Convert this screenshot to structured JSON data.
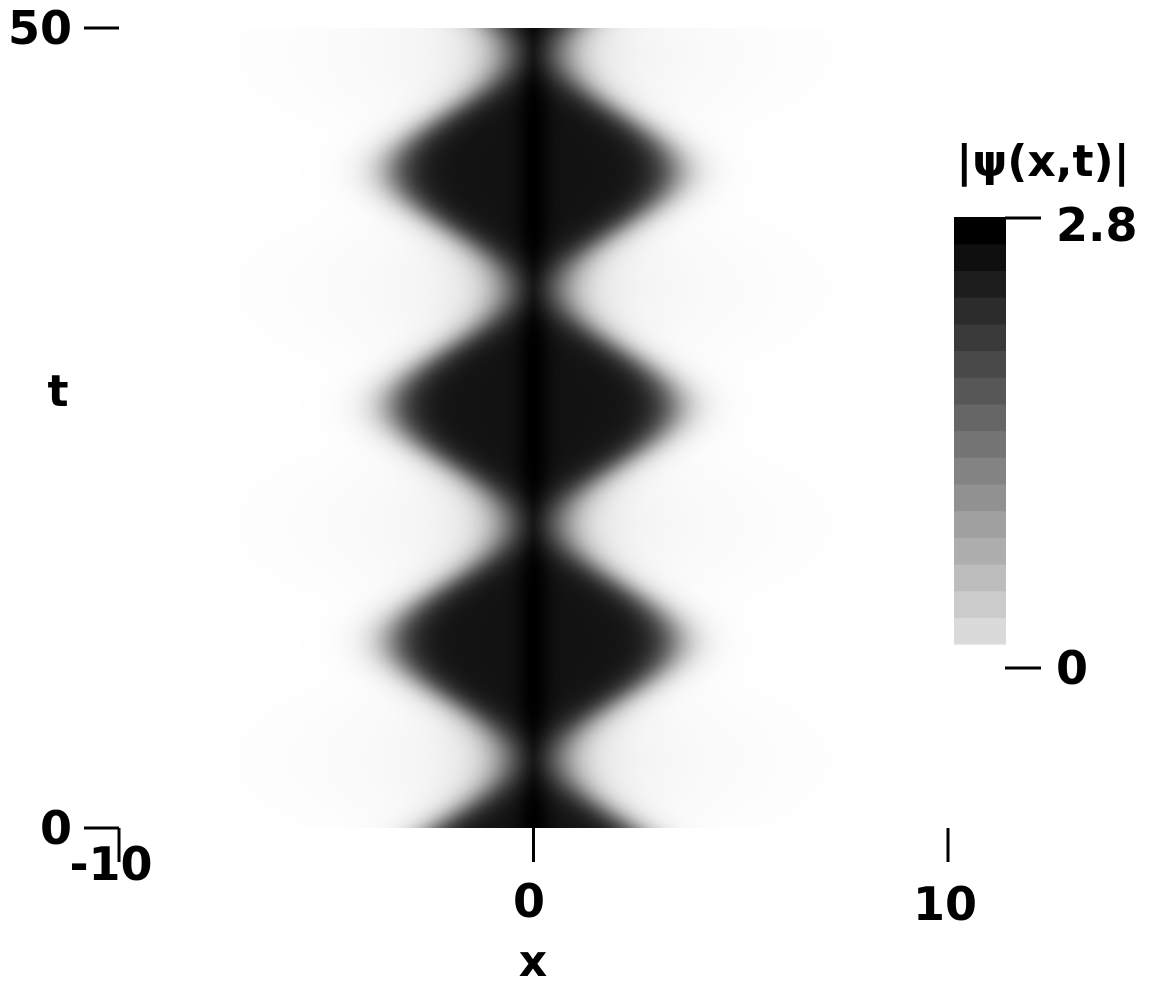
{
  "chart_data": {
    "type": "heatmap",
    "title": "",
    "xlabel": "x",
    "ylabel": "t",
    "xlim": [
      -10,
      10
    ],
    "ylim": [
      0,
      50
    ],
    "x_ticks": [
      {
        "value": -10,
        "label": "-10"
      },
      {
        "value": 0,
        "label": "0"
      },
      {
        "value": 10,
        "label": "10"
      }
    ],
    "y_ticks": [
      {
        "value": 0,
        "label": "0"
      },
      {
        "value": 50,
        "label": "50"
      }
    ],
    "colorbar": {
      "label": "|ψ(x,t)|",
      "min": 0,
      "max": 2.8,
      "min_label": "0",
      "max_label": "2.8",
      "levels": 16,
      "colormap": "grayscale (white = low, black = high)"
    },
    "field": {
      "description_value": "breathing localized bright structure centered at x = 0",
      "center_x": 0,
      "breathing_period": 14.7,
      "first_neck_t": 4.3,
      "max_half_width": 3.4,
      "neck_half_width": 0.7,
      "peak_value": 2.8,
      "plateau_value": 2.6
    }
  }
}
